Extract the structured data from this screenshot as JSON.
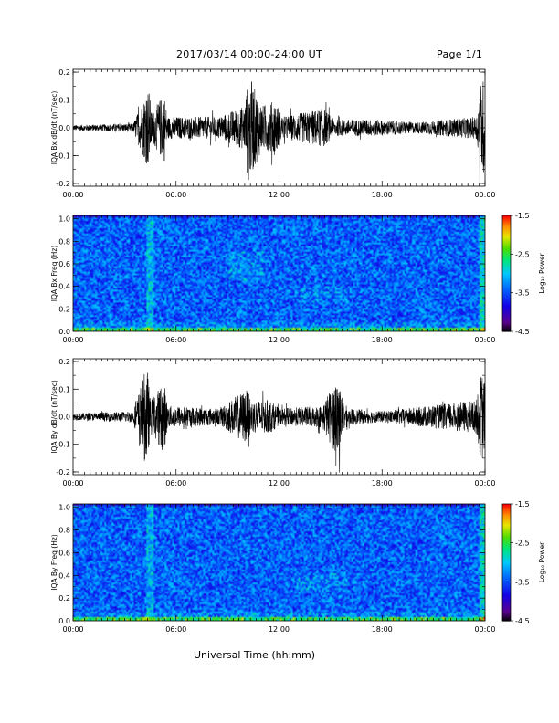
{
  "header": {
    "title": "2017/03/14  00:00-24:00 UT",
    "page": "Page 1/1"
  },
  "chart_data": [
    {
      "type": "line",
      "title": "",
      "ylabel": "IQA Bx dB/dt (nT/sec)",
      "xlabel": "",
      "x_ticks": [
        "00:00",
        "06:00",
        "12:00",
        "18:00",
        "00:00"
      ],
      "xlim_hours": [
        0,
        24
      ],
      "ylim": [
        -0.21,
        0.21
      ],
      "y_ticks": [
        "-0.2",
        "-0.1",
        "0.0",
        "0.1",
        "0.2"
      ],
      "series": [
        {
          "x_hours": [
            0,
            3.5,
            4.4,
            4.6,
            5.3,
            5.5,
            8.5,
            10.0,
            10.2,
            11.0,
            11.8,
            12.2,
            14.6,
            15.2,
            17.5,
            20.0,
            23.5,
            23.8,
            24.0
          ],
          "amplitude_envelope": [
            0.01,
            0.015,
            0.15,
            0.05,
            0.13,
            0.04,
            0.04,
            0.08,
            0.2,
            0.08,
            0.1,
            0.04,
            0.07,
            0.03,
            0.03,
            0.02,
            0.04,
            0.2,
            0.15
          ]
        }
      ]
    },
    {
      "type": "heatmap",
      "title": "",
      "ylabel": "IQA Bx Freq (Hz)",
      "xlabel": "",
      "x_ticks": [
        "00:00",
        "06:00",
        "12:00",
        "18:00",
        "00:00"
      ],
      "xlim_hours": [
        0,
        24
      ],
      "ylim": [
        0,
        1.03
      ],
      "y_ticks": [
        "0.0",
        "0.2",
        "0.4",
        "0.6",
        "0.8",
        "1.0"
      ],
      "colorbar": {
        "label": "Log₁₀ Power",
        "ticks": [
          "-1.5",
          "-2.5",
          "-3.5",
          "-4.5"
        ],
        "range": [
          -4.5,
          -1.5
        ]
      }
    },
    {
      "type": "line",
      "title": "",
      "ylabel": "IQA By dB/dt (nT/sec)",
      "xlabel": "",
      "x_ticks": [
        "00:00",
        "06:00",
        "12:00",
        "18:00",
        "00:00"
      ],
      "xlim_hours": [
        0,
        24
      ],
      "ylim": [
        -0.21,
        0.21
      ],
      "y_ticks": [
        "-0.2",
        "-0.1",
        "0.0",
        "0.1",
        "0.2"
      ],
      "series": [
        {
          "x_hours": [
            0,
            3.5,
            4.3,
            4.5,
            5.3,
            5.5,
            8.5,
            10.1,
            10.4,
            11.5,
            12.0,
            14.5,
            15.5,
            15.6,
            16.0,
            18.0,
            23.5,
            23.8,
            24.0
          ],
          "amplitude_envelope": [
            0.012,
            0.02,
            0.19,
            0.06,
            0.13,
            0.04,
            0.03,
            0.1,
            0.06,
            0.06,
            0.03,
            0.04,
            0.16,
            0.08,
            0.03,
            0.02,
            0.06,
            0.17,
            0.12
          ]
        }
      ]
    },
    {
      "type": "heatmap",
      "title": "",
      "ylabel": "IQA By Freq (Hz)",
      "xlabel": "Universal Time (hh:mm)",
      "x_ticks": [
        "00:00",
        "06:00",
        "12:00",
        "18:00",
        "00:00"
      ],
      "xlim_hours": [
        0,
        24
      ],
      "ylim": [
        0,
        1.03
      ],
      "y_ticks": [
        "0.0",
        "0.2",
        "0.4",
        "0.6",
        "0.8",
        "1.0"
      ],
      "colorbar": {
        "label": "Log₁₀ Power",
        "ticks": [
          "-1.5",
          "-2.5",
          "-3.5",
          "-4.5"
        ],
        "range": [
          -4.5,
          -1.5
        ]
      }
    }
  ],
  "colors": {
    "trace": "#000000",
    "spectrogram_background": "#2a6cff"
  }
}
